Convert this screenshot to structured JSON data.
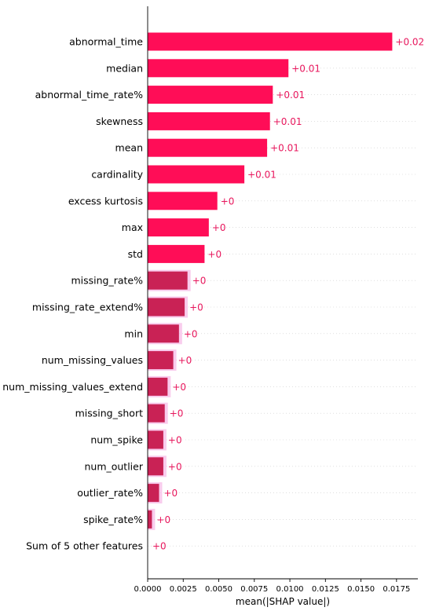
{
  "chart_data": {
    "type": "bar",
    "orientation": "horizontal",
    "xlabel": "mean(|SHAP value|)",
    "xlim": [
      0,
      0.019
    ],
    "xticks": [
      "0.0000",
      "0.0025",
      "0.0050",
      "0.0075",
      "0.0100",
      "0.0125",
      "0.0150",
      "0.0175"
    ],
    "grid": false,
    "categories": [
      "abnormal_time",
      "median",
      "abnormal_time_rate%",
      "skewness",
      "mean",
      "cardinality",
      "excess kurtosis",
      "max",
      "std",
      "missing_rate%",
      "missing_rate_extend%",
      "min",
      "num_missing_values",
      "num_missing_values_extend",
      "missing_short",
      "num_spike",
      "num_outlier",
      "outlier_rate%",
      "spike_rate%",
      "Sum of 5 other features"
    ],
    "values": [
      0.0172,
      0.0099,
      0.0088,
      0.0086,
      0.0084,
      0.0068,
      0.0049,
      0.0043,
      0.004,
      0.0028,
      0.0026,
      0.0022,
      0.0018,
      0.0014,
      0.0012,
      0.0011,
      0.0011,
      0.0008,
      0.0003,
      0.0
    ],
    "value_labels": [
      "+0.02",
      "+0.01",
      "+0.01",
      "+0.01",
      "+0.01",
      "+0.01",
      "+0",
      "+0",
      "+0",
      "+0",
      "+0",
      "+0",
      "+0",
      "+0",
      "+0",
      "+0",
      "+0",
      "+0",
      "+0",
      "+0"
    ],
    "bar_color": "#ff0d57",
    "label_color": "#e8175d"
  }
}
